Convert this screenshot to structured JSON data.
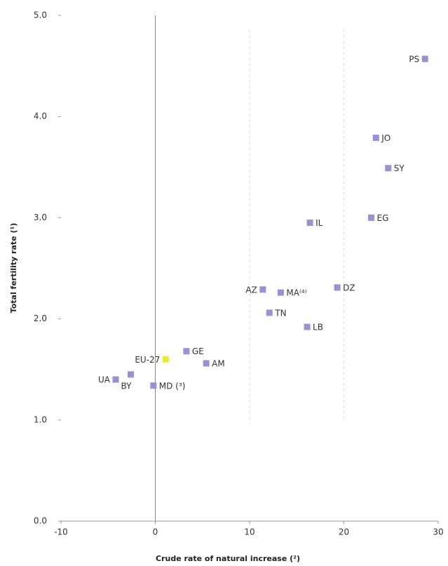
{
  "chart_data": {
    "type": "scatter",
    "xlabel": "Crude rate of natural increase (²)",
    "ylabel": "Total fertility rate (¹)",
    "labels": [
      "PS",
      "JO",
      "SY",
      "EG",
      "IL",
      "DZ",
      "AZ",
      "MA⁽⁴⁾",
      "TN",
      "LB",
      "GE",
      "EU-27",
      "AM",
      "BY",
      "UA",
      "MD (³)"
    ],
    "x": [
      28.6,
      23.4,
      24.7,
      22.9,
      16.4,
      19.3,
      11.4,
      13.3,
      12.1,
      16.1,
      3.3,
      1.1,
      5.4,
      -2.6,
      -4.2,
      -0.2
    ],
    "y": [
      4.57,
      3.79,
      3.49,
      3.0,
      2.95,
      2.31,
      2.29,
      2.26,
      2.06,
      1.92,
      1.68,
      1.6,
      1.56,
      1.45,
      1.4,
      1.34
    ],
    "point_colors": [
      "#9a90d4",
      "#9a90d4",
      "#9a90d4",
      "#9a90d4",
      "#9a90d4",
      "#9a90d4",
      "#9a90d4",
      "#9a90d4",
      "#9a90d4",
      "#9a90d4",
      "#9a90d4",
      "#e6ea3c",
      "#9a90d4",
      "#9a90d4",
      "#9a90d4",
      "#9a90d4"
    ],
    "xlim": [
      -10,
      30
    ],
    "xticks": [
      -10,
      0,
      10,
      20,
      30
    ],
    "ylim": [
      0,
      5
    ],
    "yticks": [
      {
        "value": 0,
        "label": "0.0"
      },
      {
        "value": 1,
        "label": "1.0"
      },
      {
        "value": 2,
        "label": "2.0"
      },
      {
        "value": 3,
        "label": "3.0"
      },
      {
        "value": 4,
        "label": "4.0"
      },
      {
        "value": 5,
        "label": "5.0"
      }
    ]
  }
}
